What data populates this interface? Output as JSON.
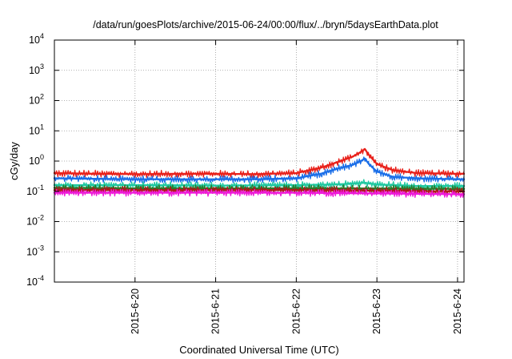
{
  "chart_data": {
    "type": "line",
    "title": "/data/run/goesPlots/archive/2015-06-24/00:00/flux/../bryn/5daysEarthData.plot",
    "xlabel": "Coordinated Universal Time (UTC)",
    "ylabel": "cGy/day",
    "yscale": "log",
    "ylim": [
      0.0001,
      10000
    ],
    "xlim": [
      0.0,
      5.08
    ],
    "grid": true,
    "grid_style": "dotted",
    "y_ticks": [
      {
        "value": 0.0001,
        "base": "10",
        "exp": "-4"
      },
      {
        "value": 0.001,
        "base": "10",
        "exp": "-3"
      },
      {
        "value": 0.01,
        "base": "10",
        "exp": "-2"
      },
      {
        "value": 0.1,
        "base": "10",
        "exp": "-1"
      },
      {
        "value": 1,
        "base": "10",
        "exp": "0"
      },
      {
        "value": 10,
        "base": "10",
        "exp": "1"
      },
      {
        "value": 100,
        "base": "10",
        "exp": "2"
      },
      {
        "value": 1000,
        "base": "10",
        "exp": "3"
      },
      {
        "value": 10000,
        "base": "10",
        "exp": "4"
      }
    ],
    "x_ticks": [
      {
        "value": 1,
        "label": "2015-6-20"
      },
      {
        "value": 2,
        "label": "2015-6-21"
      },
      {
        "value": 3,
        "label": "2015-6-22"
      },
      {
        "value": 4,
        "label": "2015-6-23"
      },
      {
        "value": 5,
        "label": "2015-6-24"
      }
    ],
    "series": [
      {
        "color": "#e8201a",
        "x": [
          0.0,
          0.5,
          1.0,
          1.5,
          2.0,
          2.5,
          3.0,
          3.3,
          3.5,
          3.7,
          3.8,
          3.85,
          3.9,
          4.0,
          4.2,
          4.5,
          5.0,
          5.08
        ],
        "values": [
          0.4,
          0.38,
          0.37,
          0.38,
          0.38,
          0.37,
          0.4,
          0.6,
          0.9,
          1.4,
          2.0,
          2.5,
          1.6,
          0.8,
          0.5,
          0.4,
          0.38,
          0.38
        ]
      },
      {
        "color": "#1a6ee8",
        "x": [
          0.0,
          0.5,
          1.0,
          1.5,
          2.0,
          2.5,
          3.0,
          3.3,
          3.5,
          3.7,
          3.8,
          3.85,
          3.9,
          4.0,
          4.2,
          4.5,
          5.0,
          5.08
        ],
        "values": [
          0.27,
          0.26,
          0.25,
          0.25,
          0.25,
          0.25,
          0.27,
          0.38,
          0.55,
          0.75,
          1.0,
          1.2,
          0.8,
          0.45,
          0.3,
          0.27,
          0.25,
          0.25
        ]
      },
      {
        "color": "#1ec8a0",
        "x": [
          0.0,
          1.0,
          2.0,
          3.0,
          3.5,
          3.85,
          4.0,
          4.5,
          5.0,
          5.08
        ],
        "values": [
          0.16,
          0.16,
          0.155,
          0.16,
          0.17,
          0.19,
          0.17,
          0.15,
          0.15,
          0.15
        ]
      },
      {
        "color": "#2a7a2a",
        "x": [
          0.0,
          1.0,
          2.0,
          3.0,
          4.0,
          5.0,
          5.08
        ],
        "values": [
          0.13,
          0.125,
          0.125,
          0.125,
          0.125,
          0.12,
          0.12
        ]
      },
      {
        "color": "#b01818",
        "x": [
          0.0,
          1.0,
          2.0,
          3.0,
          4.0,
          5.0,
          5.08
        ],
        "values": [
          0.11,
          0.11,
          0.11,
          0.11,
          0.105,
          0.1,
          0.1
        ]
      },
      {
        "color": "#ee18d8",
        "x": [
          0.0,
          1.0,
          2.0,
          3.0,
          4.0,
          5.0,
          5.08
        ],
        "values": [
          0.09,
          0.09,
          0.09,
          0.09,
          0.085,
          0.08,
          0.08
        ]
      }
    ]
  }
}
